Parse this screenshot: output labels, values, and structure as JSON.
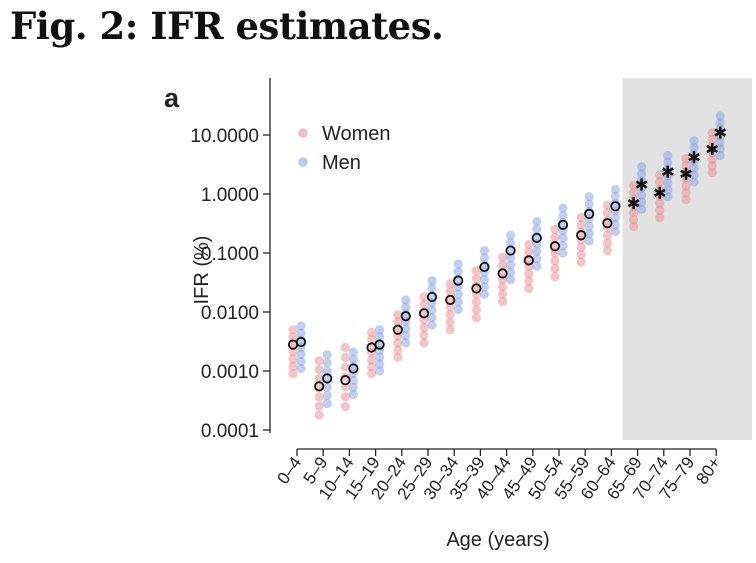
{
  "figure": {
    "title": "Fig. 2: IFR estimates.",
    "panel_label": "a"
  },
  "chart_data": {
    "type": "scatter",
    "title": "",
    "xlabel": "Age (years)",
    "ylabel": "IFR (%)",
    "yscale": "log",
    "ylim": [
      0.0001,
      25
    ],
    "yticks": [
      {
        "value": 10,
        "label": "10.0000"
      },
      {
        "value": 1,
        "label": "1.0000"
      },
      {
        "value": 0.1,
        "label": "0.1000"
      },
      {
        "value": 0.01,
        "label": "0.0100"
      },
      {
        "value": 0.001,
        "label": "0.0010"
      },
      {
        "value": 0.0001,
        "label": "0.0001"
      }
    ],
    "categories": [
      "0–4",
      "5–9",
      "10–14",
      "15–19",
      "20–24",
      "25–29",
      "30–34",
      "35–39",
      "40–44",
      "45–49",
      "50–54",
      "55–59",
      "60–64",
      "65–69",
      "70–74",
      "75–79",
      "80+"
    ],
    "shaded_region": {
      "from": "65–69",
      "to": "80+",
      "color": "#e2e2e2"
    },
    "legend": {
      "position": "top-left"
    },
    "series": [
      {
        "name": "Women",
        "color": "#e98a8f",
        "estimate_marker": [
          "circle",
          "circle",
          "circle",
          "circle",
          "circle",
          "circle",
          "circle",
          "circle",
          "circle",
          "circle",
          "circle",
          "circle",
          "circle",
          "star",
          "star",
          "star",
          "star"
        ],
        "estimates": [
          0.0028,
          0.00055,
          0.0007,
          0.0025,
          0.005,
          0.0095,
          0.016,
          0.025,
          0.045,
          0.075,
          0.13,
          0.2,
          0.32,
          0.7,
          1.05,
          2.2,
          5.8
        ],
        "points_range": [
          [
            0.0009,
            0.005
          ],
          [
            0.00018,
            0.0015
          ],
          [
            0.00025,
            0.0025
          ],
          [
            0.0009,
            0.0045
          ],
          [
            0.0017,
            0.009
          ],
          [
            0.003,
            0.018
          ],
          [
            0.005,
            0.03
          ],
          [
            0.008,
            0.05
          ],
          [
            0.015,
            0.085
          ],
          [
            0.025,
            0.14
          ],
          [
            0.04,
            0.25
          ],
          [
            0.07,
            0.4
          ],
          [
            0.11,
            0.65
          ],
          [
            0.28,
            1.4
          ],
          [
            0.4,
            2.1
          ],
          [
            0.8,
            4.0
          ],
          [
            2.3,
            11
          ]
        ]
      },
      {
        "name": "Men",
        "color": "#7f9fe6",
        "estimate_marker": [
          "circle",
          "circle",
          "circle",
          "circle",
          "circle",
          "circle",
          "circle",
          "circle",
          "circle",
          "circle",
          "circle",
          "circle",
          "circle",
          "star",
          "star",
          "star",
          "star"
        ],
        "estimates": [
          0.0031,
          0.00075,
          0.0011,
          0.0028,
          0.0085,
          0.018,
          0.034,
          0.058,
          0.11,
          0.18,
          0.3,
          0.46,
          0.62,
          1.45,
          2.4,
          4.2,
          11
        ],
        "points_range": [
          [
            0.0011,
            0.0058
          ],
          [
            0.00028,
            0.0019
          ],
          [
            0.0004,
            0.0021
          ],
          [
            0.001,
            0.005
          ],
          [
            0.003,
            0.016
          ],
          [
            0.006,
            0.034
          ],
          [
            0.011,
            0.065
          ],
          [
            0.02,
            0.11
          ],
          [
            0.035,
            0.2
          ],
          [
            0.06,
            0.34
          ],
          [
            0.1,
            0.58
          ],
          [
            0.16,
            0.9
          ],
          [
            0.23,
            1.2
          ],
          [
            0.55,
            2.9
          ],
          [
            0.9,
            4.5
          ],
          [
            1.6,
            8
          ],
          [
            4.5,
            21
          ]
        ]
      }
    ]
  }
}
